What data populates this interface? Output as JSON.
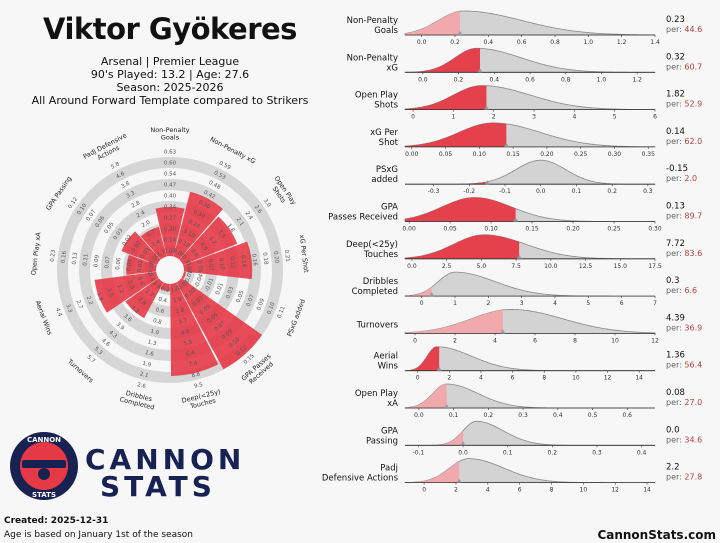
{
  "header": {
    "player": "Viktor Gyökeres",
    "club_league": "Arsenal | Premier League",
    "played_age": "90's Played: 13.2 | Age: 27.6",
    "season": "Season: 2025-2026",
    "template": "All Around Forward Template compared to Strikers"
  },
  "brand": {
    "name_line1": "CANNON",
    "name_line2": "STATS",
    "badge_top": "CANNON",
    "badge_bottom": "STATS",
    "site": "CannonStats.com"
  },
  "footer": {
    "created": "Created: 2025-12-31",
    "age_note": "Age is based on January 1st of the season"
  },
  "colors": {
    "accent": "#e63946",
    "accent_light": "#f2a6ab",
    "grey_fill": "#d3d3d3",
    "navy": "#182252",
    "ring": "#d6d6d6",
    "value": "#b0413e"
  },
  "chart_data": [
    {
      "type": "radar",
      "title": "Percentile radar",
      "rings": 10,
      "metrics": [
        {
          "label": "Non-Penalty Goals",
          "percentile": 44.6,
          "ticks": [
            "0.07",
            "0.14",
            "0.20",
            "0.27",
            "0.34",
            "0.40",
            "0.47",
            "0.54",
            "0.60",
            "0.63"
          ]
        },
        {
          "label": "Non-Penalty xG",
          "percentile": 60.7,
          "ticks": [
            "0.06",
            "0.12",
            "0.18",
            "0.24",
            "0.30",
            "0.36",
            "0.42",
            "0.48",
            "0.53",
            "0.59"
          ]
        },
        {
          "label": "Open Play Shots",
          "percentile": 52.9,
          "ticks": [
            "0.3",
            "0.6",
            "0.9",
            "1.2",
            "1.5",
            "1.8",
            "2.1",
            "2.4",
            "2.6",
            "3.0"
          ]
        },
        {
          "label": "xG Per Shot",
          "percentile": 62.0,
          "ticks": [
            "0.02",
            "0.05",
            "0.07",
            "0.10",
            "0.12",
            "0.14",
            "0.16",
            "0.18",
            "0.20",
            "0.21"
          ]
        },
        {
          "label": "PSxG added",
          "percentile": 2.0,
          "ticks": [
            "-0.07",
            "-0.04",
            "-0.01",
            "0.01",
            "0.03",
            "0.05",
            "0.07",
            "0.09",
            "0.10",
            "0.11"
          ]
        },
        {
          "label": "GPA Passes Received",
          "percentile": 89.7,
          "ticks": [
            "0.01",
            "0.02",
            "0.03",
            "0.05",
            "0.06",
            "0.07",
            "0.09",
            "0.10",
            "0.12",
            "0.15"
          ]
        },
        {
          "label": "Deep(<25y) Touches",
          "percentile": 83.6,
          "ticks": [
            "1.0",
            "1.9",
            "2.8",
            "3.7",
            "4.6",
            "5.5",
            "6.4",
            "7.4",
            "8.8",
            "9.5"
          ]
        },
        {
          "label": "Dribbles Completed",
          "percentile": 6.6,
          "ticks": [
            "0.2",
            "0.4",
            "0.6",
            "0.8",
            "1.0",
            "1.3",
            "1.6",
            "1.9",
            "2.1",
            "2.6"
          ]
        },
        {
          "label": "Turnovers",
          "percentile": 36.9,
          "ticks": [
            "2.4",
            "2.7",
            "2.9",
            "3.2",
            "3.6",
            "3.9",
            "4.3",
            "4.6",
            "5.3",
            "5.7"
          ]
        },
        {
          "label": "Aerial Wins",
          "percentile": 56.4,
          "ticks": [
            "0.4",
            "0.6",
            "0.9",
            "1.2",
            "1.5",
            "1.8",
            "2.2",
            "2.7",
            "3.3",
            "4.4"
          ]
        },
        {
          "label": "Open Play xA",
          "percentile": 27.0,
          "ticks": [
            "0.02",
            "0.03",
            "0.04",
            "0.06",
            "0.07",
            "0.09",
            "0.11",
            "0.13",
            "0.16",
            "0.23"
          ]
        },
        {
          "label": "GPA Passing",
          "percentile": 34.6,
          "ticks": [
            "0.00",
            "0.01",
            "0.02",
            "0.02",
            "0.03",
            "0.05",
            "0.06",
            "0.07",
            "0.10",
            "0.12"
          ]
        },
        {
          "label": "Padj Defensive Actions",
          "percentile": 27.8,
          "ticks": [
            "1.1",
            "1.4",
            "1.7",
            "2.0",
            "2.4",
            "2.8",
            "3.3",
            "3.8",
            "4.6",
            "5.8"
          ]
        }
      ]
    },
    {
      "type": "area",
      "title": "Distribution vs Strikers",
      "per_prefix": "per: ",
      "metrics": [
        {
          "label": "Non-Penalty\nGoals",
          "value": "0.23",
          "per": "44.6",
          "xmin": -0.1,
          "xmax": 1.4,
          "ticks": [
            "0.0",
            "0.2",
            "0.4",
            "0.6",
            "0.8",
            "1.0",
            "1.2",
            "1.4"
          ],
          "tickvals": [
            0,
            0.2,
            0.4,
            0.6,
            0.8,
            1.0,
            1.2,
            1.4
          ],
          "mode": 0.25,
          "sl": 0.15,
          "sr": 0.35,
          "player": 0.23,
          "highlight": "light"
        },
        {
          "label": "Non-Penalty\nxG",
          "value": "0.32",
          "per": "60.7",
          "xmin": -0.1,
          "xmax": 1.3,
          "ticks": [
            "0.0",
            "0.2",
            "0.4",
            "0.6",
            "0.8",
            "1.0",
            "1.2"
          ],
          "tickvals": [
            0,
            0.2,
            0.4,
            0.6,
            0.8,
            1.0,
            1.2
          ],
          "mode": 0.3,
          "sl": 0.12,
          "sr": 0.25,
          "player": 0.32,
          "highlight": "red"
        },
        {
          "label": "Open Play\nShots",
          "value": "1.82",
          "per": "52.9",
          "xmin": -0.2,
          "xmax": 6,
          "ticks": [
            "0",
            "1",
            "2",
            "3",
            "4",
            "5",
            "6"
          ],
          "tickvals": [
            0,
            1,
            2,
            3,
            4,
            5,
            6
          ],
          "mode": 1.7,
          "sl": 0.7,
          "sr": 1.2,
          "player": 1.82,
          "highlight": "red"
        },
        {
          "label": "xG Per\nShot",
          "value": "0.14",
          "per": "62.0",
          "xmin": -0.01,
          "xmax": 0.36,
          "ticks": [
            "0.00",
            "0.05",
            "0.10",
            "0.15",
            "0.20",
            "0.25",
            "0.30",
            "0.35"
          ],
          "tickvals": [
            0,
            0.05,
            0.1,
            0.15,
            0.2,
            0.25,
            0.3,
            0.35
          ],
          "mode": 0.12,
          "sl": 0.05,
          "sr": 0.07,
          "player": 0.14,
          "highlight": "red"
        },
        {
          "label": "PSxG\nadded",
          "value": "-0.15",
          "per": "2.0",
          "xmin": -0.38,
          "xmax": 0.32,
          "ticks": [
            "-0.3",
            "-0.2",
            "-0.1",
            "0.0",
            "0.1",
            "0.2",
            "0.3"
          ],
          "tickvals": [
            -0.3,
            -0.2,
            -0.1,
            0,
            0.1,
            0.2,
            0.3
          ],
          "mode": 0.0,
          "sl": 0.07,
          "sr": 0.07,
          "player": -0.15,
          "highlight": "red"
        },
        {
          "label": "GPA\nPasses Received",
          "value": "0.13",
          "per": "89.7",
          "xmin": -0.005,
          "xmax": 0.3,
          "ticks": [
            "0.00",
            "0.05",
            "0.10",
            "0.15",
            "0.20",
            "0.25",
            "0.30"
          ],
          "tickvals": [
            0,
            0.05,
            0.1,
            0.15,
            0.2,
            0.25,
            0.3
          ],
          "mode": 0.08,
          "sl": 0.04,
          "sr": 0.045,
          "player": 0.13,
          "highlight": "red"
        },
        {
          "label": "Deep(<25y)\nTouches",
          "value": "7.72",
          "per": "83.6",
          "xmin": -0.5,
          "xmax": 17.5,
          "ticks": [
            "0.0",
            "2.5",
            "5.0",
            "7.5",
            "10.0",
            "12.5",
            "15.0",
            "17.5"
          ],
          "tickvals": [
            0,
            2.5,
            5,
            7.5,
            10,
            12.5,
            15,
            17.5
          ],
          "mode": 5.2,
          "sl": 2.2,
          "sr": 3.0,
          "player": 7.72,
          "highlight": "red"
        },
        {
          "label": "Dribbles\nCompleted",
          "value": "0.3",
          "per": "6.6",
          "xmin": -0.5,
          "xmax": 7,
          "ticks": [
            "0",
            "1",
            "2",
            "3",
            "4",
            "5",
            "6",
            "7"
          ],
          "tickvals": [
            0,
            1,
            2,
            3,
            4,
            5,
            6,
            7
          ],
          "mode": 1.0,
          "sl": 0.5,
          "sr": 1.2,
          "player": 0.3,
          "highlight": "light"
        },
        {
          "label": "Turnovers",
          "value": "4.39",
          "per": "36.9",
          "xmin": -0.5,
          "xmax": 12,
          "ticks": [
            "0",
            "2",
            "4",
            "6",
            "8",
            "10",
            "12"
          ],
          "tickvals": [
            0,
            2,
            4,
            6,
            8,
            10,
            12
          ],
          "mode": 4.8,
          "sl": 2.0,
          "sr": 2.6,
          "player": 4.39,
          "highlight": "light"
        },
        {
          "label": "Aerial\nWins",
          "value": "1.36",
          "per": "56.4",
          "xmin": -0.8,
          "xmax": 15,
          "ticks": [
            "0",
            "2",
            "4",
            "6",
            "8",
            "10",
            "12",
            "14"
          ],
          "tickvals": [
            0,
            2,
            4,
            6,
            8,
            10,
            12,
            14
          ],
          "mode": 1.2,
          "sl": 0.6,
          "sr": 2.2,
          "player": 1.36,
          "highlight": "red"
        },
        {
          "label": "Open Play\nxA",
          "value": "0.08",
          "per": "27.0",
          "xmin": -0.04,
          "xmax": 0.68,
          "ticks": [
            "0.0",
            "0.1",
            "0.2",
            "0.3",
            "0.4",
            "0.5",
            "0.6"
          ],
          "tickvals": [
            0,
            0.1,
            0.2,
            0.3,
            0.4,
            0.5,
            0.6
          ],
          "mode": 0.08,
          "sl": 0.04,
          "sr": 0.09,
          "player": 0.08,
          "highlight": "light"
        },
        {
          "label": "GPA\nPassing",
          "value": "0.0",
          "per": "34.6",
          "xmin": -0.13,
          "xmax": 0.43,
          "ticks": [
            "-0.1",
            "0.0",
            "0.1",
            "0.2",
            "0.3",
            "0.4"
          ],
          "tickvals": [
            -0.1,
            0,
            0.1,
            0.2,
            0.3,
            0.4
          ],
          "mode": 0.03,
          "sl": 0.03,
          "sr": 0.06,
          "player": 0.0,
          "highlight": "light"
        },
        {
          "label": "Padj\nDefensive Actions",
          "value": "2.2",
          "per": "27.8",
          "xmin": -1.2,
          "xmax": 14.5,
          "ticks": [
            "0",
            "2",
            "4",
            "6",
            "8",
            "10",
            "12",
            "14"
          ],
          "tickvals": [
            0,
            2,
            4,
            6,
            8,
            10,
            12,
            14
          ],
          "mode": 2.8,
          "sl": 1.2,
          "sr": 2.2,
          "player": 2.2,
          "highlight": "light"
        }
      ]
    }
  ]
}
